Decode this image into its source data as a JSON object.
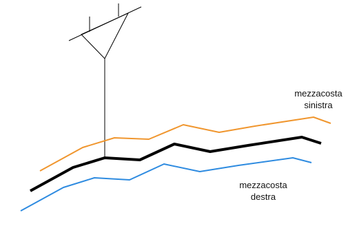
{
  "labels": {
    "left_side": [
      "mezzacosta",
      "sinistra"
    ],
    "right_side": [
      "mezzacosta",
      "destra"
    ]
  },
  "lines": {
    "left_color": "#f0962e",
    "center_color": "#000000",
    "right_color": "#2e8be0",
    "instrument_color": "#000000"
  }
}
